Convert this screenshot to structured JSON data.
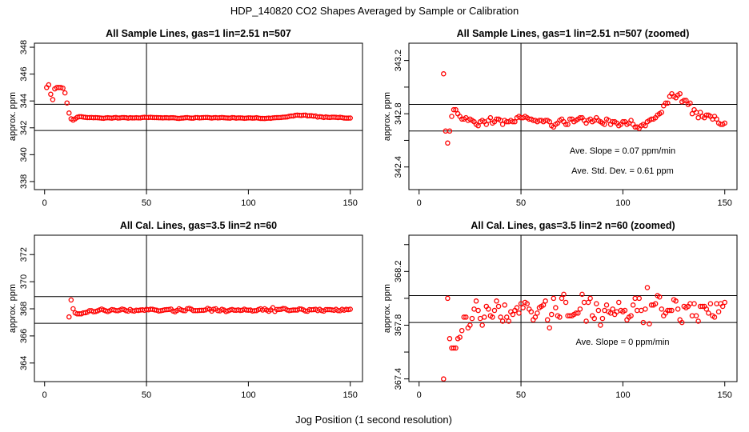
{
  "main_title": "HDP_140820  CO2 Shapes Averaged by Sample or Calibration",
  "xlabel": "Jog Position (1 second resolution)",
  "colors": {
    "points": "#ff0000",
    "lines": "#000000"
  },
  "chart_data": [
    {
      "type": "scatter",
      "title": "All Sample Lines, gas=1 lin=2.51 n=507",
      "ylabel": "approx. ppm",
      "xlim": [
        -5,
        156
      ],
      "ylim": [
        337.4,
        348.3
      ],
      "xticks": [
        0,
        50,
        100,
        150
      ],
      "yticks": [
        338,
        340,
        342,
        344,
        346,
        348
      ],
      "ytick_labels": [
        "338",
        "340",
        "342",
        "344",
        "346",
        "348"
      ],
      "vline": 50,
      "hlines": [
        341.8,
        343.75
      ],
      "series": "sample",
      "annotations": []
    },
    {
      "type": "scatter",
      "title": "All Sample Lines, gas=1 lin=2.51 n=507 (zoomed)",
      "ylabel": "approx. ppm",
      "xlim": [
        -5,
        156
      ],
      "ylim": [
        342.23,
        343.33
      ],
      "xticks": [
        0,
        50,
        100,
        150
      ],
      "yticks": [
        342.4,
        342.6,
        342.8,
        343.0,
        343.2
      ],
      "ytick_labels": [
        "342.4",
        "",
        "342.8",
        "",
        "343.2"
      ],
      "vline": 50,
      "hlines": [
        342.67,
        342.87
      ],
      "series": "sample",
      "annotations": [
        "Ave. Slope =  0.07  ppm/min",
        "Ave. Std. Dev. =  0.61  ppm"
      ]
    },
    {
      "type": "scatter",
      "title": "All Cal. Lines, gas=3.5 lin=2 n=60",
      "ylabel": "approx. ppm",
      "xlim": [
        -5,
        156
      ],
      "ylim": [
        362.63,
        373.43
      ],
      "xticks": [
        0,
        50,
        100,
        150
      ],
      "yticks": [
        364,
        366,
        368,
        370,
        372
      ],
      "ytick_labels": [
        "364",
        "366",
        "368",
        "370",
        "372"
      ],
      "vline": 50,
      "hlines": [
        366.93,
        368.9
      ],
      "series": "cal",
      "annotations": []
    },
    {
      "type": "scatter",
      "title": "All Cal. Lines, gas=3.5 lin=2 n=60 (zoomed)",
      "ylabel": "approx. ppm",
      "xlim": [
        -5,
        156
      ],
      "ylim": [
        367.38,
        368.47
      ],
      "xticks": [
        0,
        50,
        100,
        150
      ],
      "yticks": [
        367.4,
        367.6,
        367.8,
        368.0,
        368.2,
        368.4
      ],
      "ytick_labels": [
        "367.4",
        "",
        "367.8",
        "",
        "368.2",
        ""
      ],
      "vline": 50,
      "hlines": [
        367.82,
        368.02
      ],
      "series": "cal",
      "annotations": [
        "Ave. Slope =  0  ppm/min"
      ]
    }
  ],
  "series_data": {
    "sample": {
      "x_start": 1,
      "y": [
        345.0,
        345.2,
        344.5,
        344.1,
        344.9,
        345.0,
        345.0,
        345.0,
        344.95,
        344.6,
        343.85,
        343.1,
        342.67,
        342.58,
        342.67,
        342.78,
        342.83,
        342.83,
        342.8,
        342.78,
        342.76,
        342.76,
        342.77,
        342.75,
        342.76,
        342.75,
        342.74,
        342.72,
        342.71,
        342.74,
        342.75,
        342.74,
        342.72,
        342.75,
        342.77,
        342.73,
        342.74,
        342.76,
        342.76,
        342.75,
        342.72,
        342.75,
        342.74,
        342.74,
        342.75,
        342.74,
        342.74,
        342.77,
        342.78,
        342.77,
        342.77,
        342.78,
        342.77,
        342.76,
        342.76,
        342.75,
        342.75,
        342.74,
        342.75,
        342.75,
        342.74,
        342.75,
        342.75,
        342.74,
        342.71,
        342.7,
        342.72,
        342.73,
        342.75,
        342.76,
        342.74,
        342.72,
        342.72,
        342.76,
        342.76,
        342.74,
        342.75,
        342.76,
        342.77,
        342.77,
        342.75,
        342.73,
        342.75,
        342.76,
        342.74,
        342.75,
        342.77,
        342.75,
        342.74,
        342.73,
        342.72,
        342.76,
        342.75,
        342.72,
        342.74,
        342.74,
        342.73,
        342.71,
        342.72,
        342.74,
        342.74,
        342.72,
        342.73,
        342.75,
        342.72,
        342.7,
        342.7,
        342.69,
        342.71,
        342.72,
        342.71,
        342.74,
        342.75,
        342.76,
        342.76,
        342.77,
        342.79,
        342.8,
        342.81,
        342.86,
        342.88,
        342.88,
        342.93,
        342.95,
        342.93,
        342.92,
        342.94,
        342.95,
        342.89,
        342.9,
        342.9,
        342.87,
        342.88,
        342.8,
        342.83,
        342.81,
        342.77,
        342.81,
        342.78,
        342.77,
        342.79,
        342.79,
        342.78,
        342.76,
        342.78,
        342.76,
        342.73,
        342.72,
        342.72,
        342.73
      ]
    },
    "cal": {
      "x_start": 12,
      "y": [
        367.4,
        368.65,
        368.0,
        367.7,
        367.63,
        367.63,
        367.63,
        367.7,
        367.71,
        367.76,
        367.86,
        367.86,
        367.78,
        367.8,
        367.85,
        367.92,
        367.98,
        367.91,
        367.85,
        367.8,
        367.86,
        367.94,
        367.92,
        367.87,
        367.86,
        367.91,
        367.98,
        367.94,
        367.86,
        367.83,
        367.95,
        367.86,
        367.83,
        367.9,
        367.88,
        367.91,
        367.93,
        367.89,
        367.96,
        367.93,
        367.97,
        367.96,
        367.92,
        367.9,
        367.84,
        367.86,
        367.89,
        367.93,
        367.94,
        367.95,
        367.98,
        367.84,
        367.78,
        367.88,
        368.0,
        367.93,
        367.87,
        367.86,
        368.0,
        368.03,
        367.97,
        367.87,
        367.87,
        367.87,
        367.88,
        367.89,
        367.89,
        367.92,
        368.03,
        367.97,
        367.83,
        367.97,
        368.0,
        367.87,
        367.85,
        367.96,
        367.91,
        367.8,
        367.85,
        367.91,
        367.95,
        367.9,
        367.89,
        367.92,
        367.88,
        367.9,
        367.97,
        367.91,
        367.9,
        367.91,
        367.84,
        367.86,
        367.87,
        367.95,
        368.0,
        367.91,
        368.0,
        367.91,
        367.82,
        367.92,
        368.08,
        367.81,
        367.95,
        367.95,
        367.96,
        368.02,
        368.01,
        367.92,
        367.87,
        367.89,
        367.91,
        367.91,
        367.91,
        367.99,
        367.98,
        367.92,
        367.84,
        367.82,
        367.94,
        367.93,
        367.94,
        367.96,
        367.87,
        367.96,
        367.87,
        367.83,
        367.94,
        367.94,
        367.94,
        367.92,
        367.89,
        367.96,
        367.87,
        367.86,
        367.96,
        367.9,
        367.96,
        367.94,
        367.97
      ]
    }
  }
}
